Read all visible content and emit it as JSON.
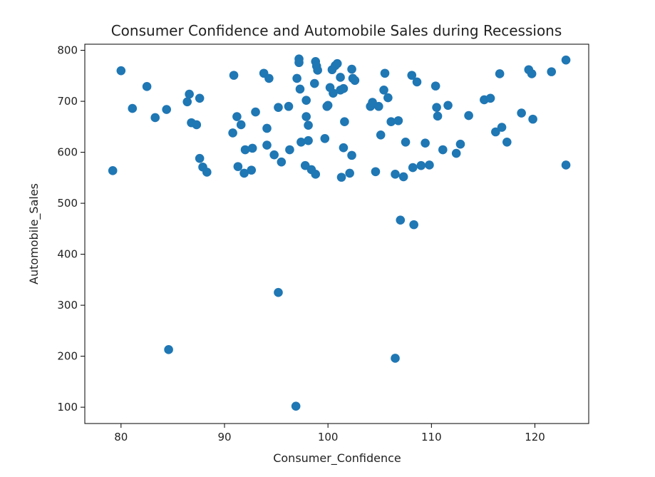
{
  "chart_data": {
    "type": "scatter",
    "title": "Consumer Confidence and Automobile Sales during Recessions",
    "xlabel": "Consumer_Confidence",
    "ylabel": "Automobile_Sales",
    "xlim": [
      76.5,
      125.2
    ],
    "ylim": [
      68,
      812
    ],
    "xticks": [
      80,
      90,
      100,
      110,
      120
    ],
    "yticks": [
      100,
      200,
      300,
      400,
      500,
      600,
      700,
      800
    ],
    "grid": false,
    "marker_color": "#1f77b4",
    "points": [
      [
        79.2,
        564
      ],
      [
        80.0,
        760
      ],
      [
        81.1,
        686
      ],
      [
        82.5,
        729
      ],
      [
        83.3,
        668
      ],
      [
        84.4,
        684
      ],
      [
        84.6,
        213
      ],
      [
        86.4,
        699
      ],
      [
        86.6,
        714
      ],
      [
        86.8,
        658
      ],
      [
        87.3,
        654
      ],
      [
        87.6,
        706
      ],
      [
        87.6,
        588
      ],
      [
        87.9,
        571
      ],
      [
        88.3,
        561
      ],
      [
        90.8,
        638
      ],
      [
        90.9,
        751
      ],
      [
        91.2,
        670
      ],
      [
        91.3,
        572
      ],
      [
        91.6,
        654
      ],
      [
        91.9,
        559
      ],
      [
        92.0,
        605
      ],
      [
        92.6,
        565
      ],
      [
        92.7,
        608
      ],
      [
        93.0,
        679
      ],
      [
        93.8,
        755
      ],
      [
        94.1,
        647
      ],
      [
        94.1,
        614
      ],
      [
        94.3,
        745
      ],
      [
        94.8,
        595
      ],
      [
        95.2,
        688
      ],
      [
        95.2,
        325
      ],
      [
        95.5,
        581
      ],
      [
        96.2,
        690
      ],
      [
        96.3,
        605
      ],
      [
        96.9,
        102
      ],
      [
        97.0,
        745
      ],
      [
        97.2,
        783
      ],
      [
        97.2,
        776
      ],
      [
        97.3,
        724
      ],
      [
        97.4,
        620
      ],
      [
        97.8,
        574
      ],
      [
        97.9,
        702
      ],
      [
        97.9,
        670
      ],
      [
        98.1,
        623
      ],
      [
        98.1,
        653
      ],
      [
        98.4,
        566
      ],
      [
        98.7,
        735
      ],
      [
        98.8,
        557
      ],
      [
        98.8,
        778
      ],
      [
        98.9,
        769
      ],
      [
        99.0,
        761
      ],
      [
        99.7,
        627
      ],
      [
        99.9,
        690
      ],
      [
        100.0,
        692
      ],
      [
        100.2,
        727
      ],
      [
        100.4,
        762
      ],
      [
        100.5,
        716
      ],
      [
        100.7,
        770
      ],
      [
        100.9,
        774
      ],
      [
        101.2,
        747
      ],
      [
        101.2,
        722
      ],
      [
        101.5,
        725
      ],
      [
        101.3,
        551
      ],
      [
        101.5,
        609
      ],
      [
        101.6,
        660
      ],
      [
        102.1,
        559
      ],
      [
        102.3,
        763
      ],
      [
        102.4,
        745
      ],
      [
        102.3,
        594
      ],
      [
        102.6,
        741
      ],
      [
        104.1,
        690
      ],
      [
        104.3,
        698
      ],
      [
        104.6,
        562
      ],
      [
        104.9,
        690
      ],
      [
        105.1,
        634
      ],
      [
        105.5,
        755
      ],
      [
        105.4,
        722
      ],
      [
        105.8,
        707
      ],
      [
        106.1,
        660
      ],
      [
        106.5,
        196
      ],
      [
        106.5,
        557
      ],
      [
        106.8,
        662
      ],
      [
        107.0,
        467
      ],
      [
        107.3,
        552
      ],
      [
        107.5,
        620
      ],
      [
        108.1,
        751
      ],
      [
        108.2,
        570
      ],
      [
        108.3,
        458
      ],
      [
        108.6,
        738
      ],
      [
        109.0,
        574
      ],
      [
        109.4,
        618
      ],
      [
        109.8,
        575
      ],
      [
        110.4,
        730
      ],
      [
        110.5,
        688
      ],
      [
        110.6,
        671
      ],
      [
        111.1,
        605
      ],
      [
        111.6,
        692
      ],
      [
        112.4,
        598
      ],
      [
        112.8,
        616
      ],
      [
        113.6,
        672
      ],
      [
        115.1,
        703
      ],
      [
        115.7,
        706
      ],
      [
        116.2,
        640
      ],
      [
        116.6,
        754
      ],
      [
        116.8,
        649
      ],
      [
        117.3,
        620
      ],
      [
        118.7,
        677
      ],
      [
        119.4,
        762
      ],
      [
        119.7,
        754
      ],
      [
        119.8,
        665
      ],
      [
        121.6,
        758
      ],
      [
        123.0,
        781
      ],
      [
        123.0,
        575
      ]
    ]
  }
}
